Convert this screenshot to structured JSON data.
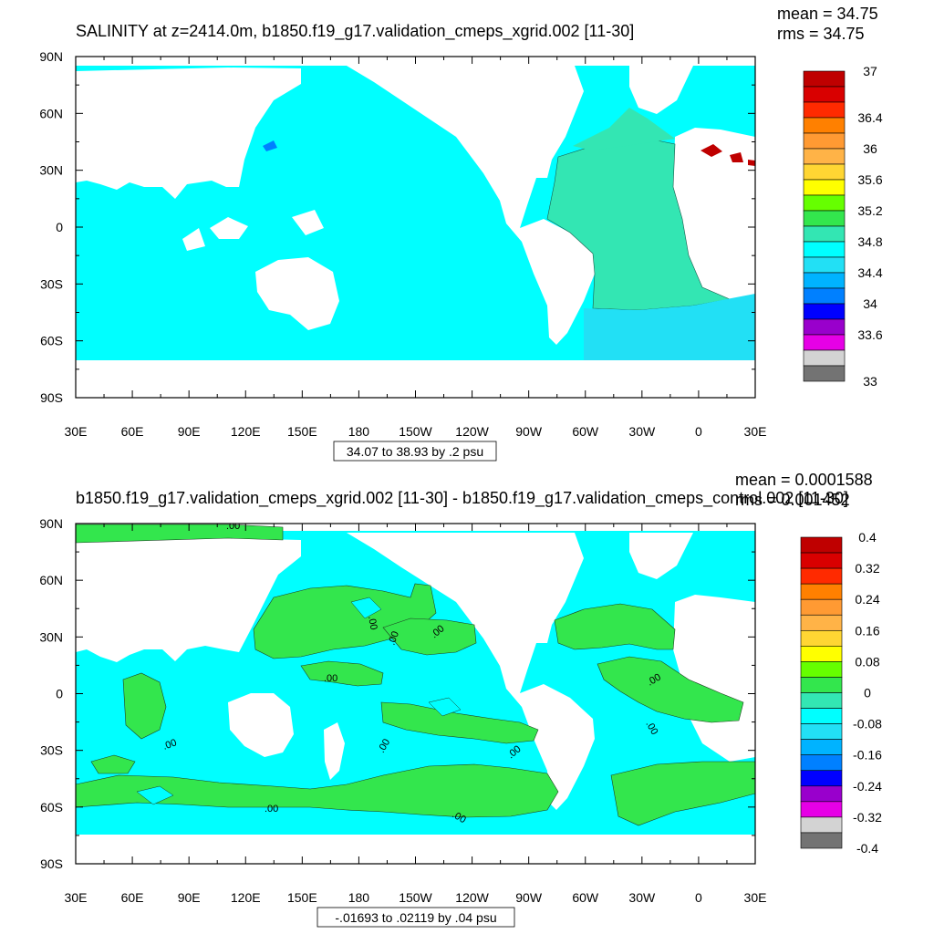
{
  "chart_data": [
    {
      "type": "heatmap",
      "title": "SALINITY at z=2414.0m, b1850.f19_g17.validation_cmeps_xgrid.002 [11-30]",
      "stats": {
        "mean": "mean = 34.75",
        "rms": "rms = 34.75"
      },
      "x_ticks": [
        "30E",
        "60E",
        "90E",
        "120E",
        "150E",
        "180",
        "150W",
        "120W",
        "90W",
        "60W",
        "30W",
        "0",
        "30E"
      ],
      "y_ticks": [
        "90N",
        "60N",
        "30N",
        "0",
        "30S",
        "60S",
        "90S"
      ],
      "xlim": [
        30,
        390
      ],
      "ylim": [
        -90,
        90
      ],
      "range_label": "34.07 to 38.93 by .2 psu",
      "colorbar": {
        "colors": [
          "#bf0000",
          "#d90000",
          "#ff2a00",
          "#ff8000",
          "#ff9a33",
          "#ffb347",
          "#ffd633",
          "#ffff00",
          "#66ff00",
          "#33e64d",
          "#33e6b3",
          "#00ffff",
          "#22e0f5",
          "#00b3ff",
          "#0080ff",
          "#0000ff",
          "#9900cc",
          "#e600e6",
          "#d3d3d3",
          "#737373"
        ],
        "labels": [
          {
            "text": "37",
            "pos": 0
          },
          {
            "text": "36.4",
            "pos": 3
          },
          {
            "text": "36",
            "pos": 5
          },
          {
            "text": "35.6",
            "pos": 7
          },
          {
            "text": "35.2",
            "pos": 9
          },
          {
            "text": "34.8",
            "pos": 11
          },
          {
            "text": "34.4",
            "pos": 13
          },
          {
            "text": "34",
            "pos": 15
          },
          {
            "text": "33.6",
            "pos": 17
          },
          {
            "text": "33",
            "pos": 20
          }
        ]
      }
    },
    {
      "type": "heatmap",
      "title": "b1850.f19_g17.validation_cmeps_xgrid.002 [11-30] - b1850.f19_g17.validation_cmeps_control.002 [11-30]",
      "stats": {
        "mean": "mean = 0.0001588",
        "rms": "rms = 0.001452"
      },
      "x_ticks": [
        "30E",
        "60E",
        "90E",
        "120E",
        "150E",
        "180",
        "150W",
        "120W",
        "90W",
        "60W",
        "30W",
        "0",
        "30E"
      ],
      "y_ticks": [
        "90N",
        "60N",
        "30N",
        "0",
        "30S",
        "60S",
        "90S"
      ],
      "xlim": [
        30,
        390
      ],
      "ylim": [
        -90,
        90
      ],
      "range_label": "-.01693 to .02119 by .04 psu",
      "contour_label": ".00",
      "colorbar": {
        "colors": [
          "#bf0000",
          "#d90000",
          "#ff2a00",
          "#ff8000",
          "#ff9a33",
          "#ffb347",
          "#ffd633",
          "#ffff00",
          "#66ff00",
          "#33e64d",
          "#33e6b3",
          "#00ffff",
          "#22e0f5",
          "#00b3ff",
          "#0080ff",
          "#0000ff",
          "#9900cc",
          "#e600e6",
          "#d3d3d3",
          "#737373"
        ],
        "labels": [
          {
            "text": "0.4",
            "pos": 0
          },
          {
            "text": "0.32",
            "pos": 2
          },
          {
            "text": "0.24",
            "pos": 4
          },
          {
            "text": "0.16",
            "pos": 6
          },
          {
            "text": "0.08",
            "pos": 8
          },
          {
            "text": "0",
            "pos": 10
          },
          {
            "text": "-0.08",
            "pos": 12
          },
          {
            "text": "-0.16",
            "pos": 14
          },
          {
            "text": "-0.24",
            "pos": 16
          },
          {
            "text": "-0.32",
            "pos": 18
          },
          {
            "text": "-0.4",
            "pos": 20
          }
        ]
      }
    }
  ]
}
